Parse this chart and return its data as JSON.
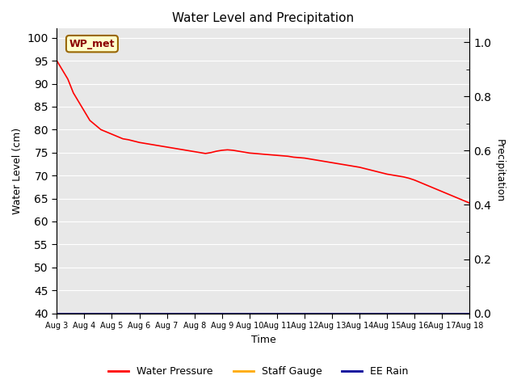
{
  "title": "Water Level and Precipitation",
  "xlabel": "Time",
  "ylabel_left": "Water Level (cm)",
  "ylabel_right": "Precipitation",
  "annotation_text": "WP_met",
  "annotation_bg": "#ffffcc",
  "annotation_border": "#996600",
  "ylim_left": [
    40,
    102
  ],
  "ylim_right": [
    0.0,
    1.05
  ],
  "yticks_left": [
    40,
    45,
    50,
    55,
    60,
    65,
    70,
    75,
    80,
    85,
    90,
    95,
    100
  ],
  "yticks_right": [
    0.0,
    0.2,
    0.4,
    0.6,
    0.8,
    1.0
  ],
  "x_tick_labels": [
    "Aug 3",
    "Aug 4",
    "Aug 5",
    "Aug 6",
    "Aug 7",
    "Aug 8",
    "Aug 9",
    "Aug 10",
    "Aug 11",
    "Aug 12",
    "Aug 13",
    "Aug 14",
    "Aug 15",
    "Aug 16",
    "Aug 17",
    "Aug 18"
  ],
  "plot_bg": "#e8e8e8",
  "fig_bg": "#ffffff",
  "grid_color": "#ffffff",
  "line_color_wp": "#ff0000",
  "line_color_staff": "#ffaa00",
  "line_color_rain": "#000099",
  "legend_labels": [
    "Water Pressure",
    "Staff Gauge",
    "EE Rain"
  ],
  "water_pressure_x": [
    0,
    0.2,
    0.4,
    0.6,
    0.8,
    1.0,
    1.2,
    1.4,
    1.6,
    1.8,
    2.0,
    2.2,
    2.4,
    2.6,
    2.8,
    3.0,
    3.2,
    3.4,
    3.6,
    3.8,
    4.0,
    4.2,
    4.4,
    4.6,
    4.8,
    5.0,
    5.2,
    5.4,
    5.6,
    5.8,
    6.0,
    6.2,
    6.4,
    6.6,
    6.8,
    7.0,
    7.2,
    7.4,
    7.6,
    7.8,
    8.0,
    8.2,
    8.4,
    8.6,
    8.8,
    9.0,
    9.2,
    9.4,
    9.6,
    9.8,
    10.0,
    10.2,
    10.4,
    10.6,
    10.8,
    11.0,
    11.2,
    11.4,
    11.6,
    11.8,
    12.0,
    12.2,
    12.4,
    12.6,
    12.8,
    13.0,
    13.2,
    13.4,
    13.6,
    13.8,
    14.0,
    14.2,
    14.4,
    14.6,
    14.8,
    15.0
  ],
  "water_pressure_y": [
    95,
    93,
    91,
    88,
    86,
    84,
    82,
    81,
    80,
    79.5,
    79,
    78.5,
    78,
    77.8,
    77.5,
    77.2,
    77,
    76.8,
    76.6,
    76.4,
    76.2,
    76,
    75.8,
    75.6,
    75.4,
    75.2,
    75,
    74.8,
    75,
    75.3,
    75.5,
    75.6,
    75.5,
    75.3,
    75.1,
    74.9,
    74.8,
    74.7,
    74.6,
    74.5,
    74.4,
    74.3,
    74.2,
    74.0,
    73.9,
    73.8,
    73.6,
    73.4,
    73.2,
    73.0,
    72.8,
    72.6,
    72.4,
    72.2,
    72.0,
    71.8,
    71.5,
    71.2,
    70.9,
    70.6,
    70.3,
    70.1,
    69.9,
    69.7,
    69.4,
    69.0,
    68.5,
    68.0,
    67.5,
    67.0,
    66.5,
    66.0,
    65.5,
    65.0,
    64.5,
    64.0
  ]
}
